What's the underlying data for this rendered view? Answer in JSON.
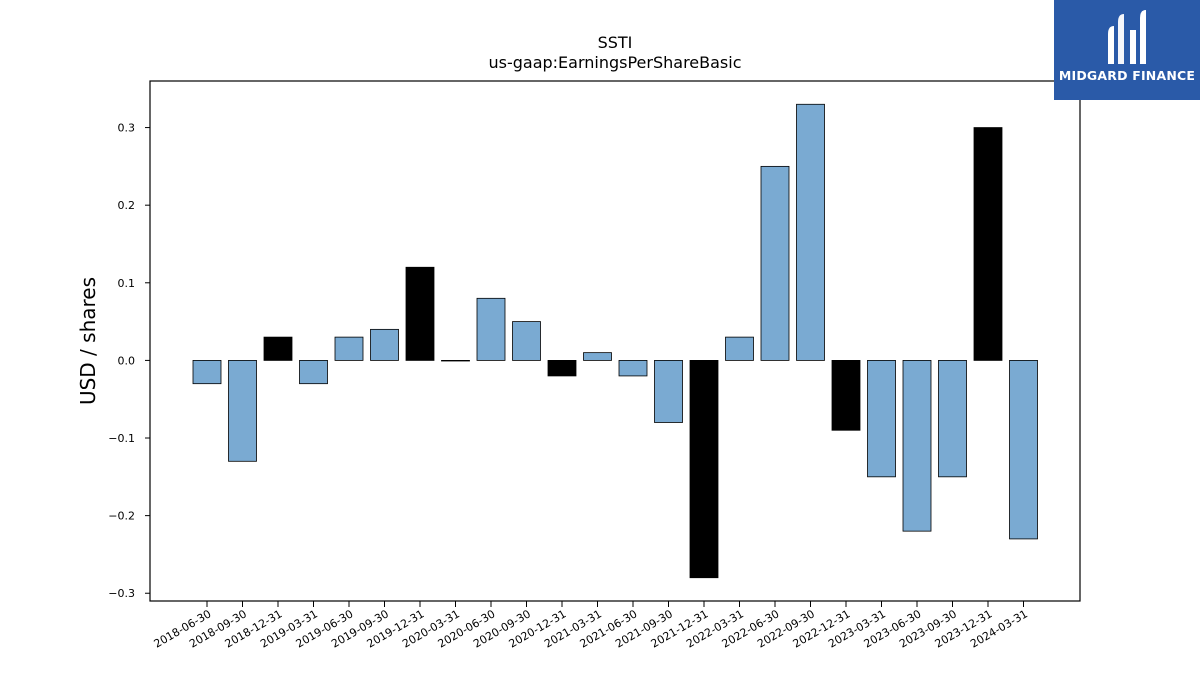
{
  "chart_data": {
    "type": "bar",
    "title": "SSTI",
    "subtitle": "us-gaap:EarningsPerShareBasic",
    "xlabel": "",
    "ylabel": "USD / shares",
    "ylim": [
      -0.31,
      0.36
    ],
    "yticks": [
      -0.3,
      -0.2,
      -0.1,
      0.0,
      0.1,
      0.2,
      0.3
    ],
    "ytick_labels": [
      "−0.3",
      "−0.2",
      "−0.1",
      "0.0",
      "0.1",
      "0.2",
      "0.3"
    ],
    "grid": false,
    "colors": {
      "quarterly": "#7aaad2",
      "annual": "#000000"
    },
    "categories": [
      "2018-06-30",
      "2018-09-30",
      "2018-12-31",
      "2019-03-31",
      "2019-06-30",
      "2019-09-30",
      "2019-12-31",
      "2020-03-31",
      "2020-06-30",
      "2020-09-30",
      "2020-12-31",
      "2021-03-31",
      "2021-06-30",
      "2021-09-30",
      "2021-12-31",
      "2022-03-31",
      "2022-06-30",
      "2022-09-30",
      "2022-12-31",
      "2023-03-31",
      "2023-06-30",
      "2023-09-30",
      "2023-12-31",
      "2024-03-31"
    ],
    "values": [
      -0.03,
      -0.13,
      0.03,
      -0.03,
      0.03,
      0.04,
      0.12,
      0.0,
      0.08,
      0.05,
      -0.02,
      0.01,
      -0.02,
      -0.08,
      -0.28,
      0.03,
      0.25,
      0.33,
      -0.09,
      -0.15,
      -0.22,
      -0.15,
      0.3,
      -0.23
    ],
    "bar_kind": [
      "q",
      "q",
      "a",
      "q",
      "q",
      "q",
      "a",
      "a",
      "q",
      "q",
      "a",
      "q",
      "q",
      "q",
      "a",
      "q",
      "q",
      "q",
      "a",
      "q",
      "q",
      "q",
      "a",
      "q"
    ]
  },
  "logo": {
    "text": "MIDGARD FINANCE"
  }
}
